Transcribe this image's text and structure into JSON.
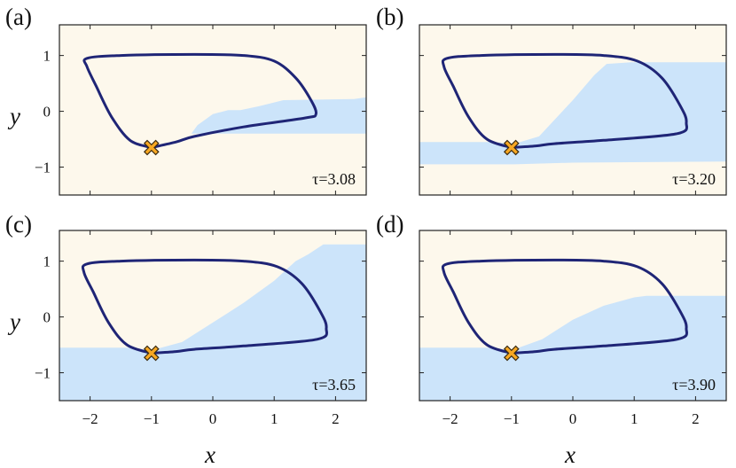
{
  "chart_data": [
    {
      "type": "phase-portrait",
      "panel_label": "(a)",
      "annotation": "τ=3.08",
      "xlabel": "",
      "ylabel": "y",
      "xlim": [
        -2.5,
        2.5
      ],
      "ylim": [
        -1.5,
        1.55
      ],
      "xticks": [],
      "yticks": [
        "1",
        "0",
        "−1"
      ],
      "basin_boundary_upper": [
        [
          -0.35,
          -0.4
        ],
        [
          -0.25,
          -0.25
        ],
        [
          0.0,
          -0.05
        ],
        [
          0.25,
          0.02
        ],
        [
          0.45,
          0.02
        ],
        [
          0.75,
          0.09
        ],
        [
          1.15,
          0.2
        ],
        [
          2.3,
          0.22
        ],
        [
          2.5,
          0.25
        ]
      ],
      "basin_boundary_lower": [
        [
          -0.35,
          -0.4
        ],
        [
          2.5,
          -0.4
        ]
      ],
      "limit_cycle": [
        [
          -1.0,
          -0.65
        ],
        [
          -1.35,
          -0.52
        ],
        [
          -1.65,
          -0.1
        ],
        [
          -1.9,
          0.45
        ],
        [
          -2.05,
          0.8
        ],
        [
          -2.05,
          0.95
        ],
        [
          -1.5,
          1.0
        ],
        [
          -0.3,
          1.02
        ],
        [
          0.5,
          1.0
        ],
        [
          1.0,
          0.9
        ],
        [
          1.35,
          0.6
        ],
        [
          1.6,
          0.2
        ],
        [
          1.68,
          -0.05
        ],
        [
          1.5,
          -0.12
        ],
        [
          0.5,
          -0.28
        ],
        [
          -0.3,
          -0.45
        ],
        [
          -0.6,
          -0.55
        ],
        [
          -1.0,
          -0.65
        ]
      ],
      "initial_point": [
        -1.0,
        -0.65
      ],
      "background_color": "#fdf8ec",
      "basin_color": "#cce4fa",
      "cycle_color": "#1f2576",
      "marker_color": "#f7a823"
    },
    {
      "type": "phase-portrait",
      "panel_label": "(b)",
      "annotation": "τ=3.20",
      "xlabel": "",
      "ylabel": "",
      "xlim": [
        -2.5,
        2.5
      ],
      "ylim": [
        -1.5,
        1.55
      ],
      "xticks": [],
      "yticks": [],
      "basin_boundary_upper": [
        [
          -2.5,
          -0.55
        ],
        [
          -1.3,
          -0.55
        ],
        [
          -0.95,
          -0.58
        ],
        [
          -0.55,
          -0.45
        ],
        [
          0.0,
          0.2
        ],
        [
          0.35,
          0.65
        ],
        [
          0.55,
          0.85
        ],
        [
          0.95,
          0.88
        ],
        [
          2.5,
          0.88
        ]
      ],
      "basin_boundary_lower": [
        [
          -2.5,
          -0.95
        ],
        [
          -0.95,
          -0.95
        ],
        [
          0.0,
          -0.92
        ],
        [
          2.5,
          -0.9
        ]
      ],
      "limit_cycle": [
        [
          -1.0,
          -0.65
        ],
        [
          -1.4,
          -0.5
        ],
        [
          -1.7,
          -0.1
        ],
        [
          -1.95,
          0.45
        ],
        [
          -2.1,
          0.8
        ],
        [
          -2.05,
          0.95
        ],
        [
          -1.5,
          1.0
        ],
        [
          -0.3,
          1.02
        ],
        [
          0.5,
          1.0
        ],
        [
          1.05,
          0.9
        ],
        [
          1.45,
          0.6
        ],
        [
          1.75,
          0.1
        ],
        [
          1.85,
          -0.2
        ],
        [
          1.7,
          -0.4
        ],
        [
          0.5,
          -0.52
        ],
        [
          -0.3,
          -0.58
        ],
        [
          -0.6,
          -0.62
        ],
        [
          -1.0,
          -0.65
        ]
      ],
      "initial_point": [
        -1.0,
        -0.65
      ],
      "background_color": "#fdf8ec",
      "basin_color": "#cce4fa",
      "cycle_color": "#1f2576",
      "marker_color": "#f7a823"
    },
    {
      "type": "phase-portrait",
      "panel_label": "(c)",
      "annotation": "τ=3.65",
      "xlabel": "x",
      "ylabel": "y",
      "xlim": [
        -2.5,
        2.5
      ],
      "ylim": [
        -1.5,
        1.55
      ],
      "xticks": [
        "−2",
        "−1",
        "0",
        "1",
        "2"
      ],
      "yticks": [
        "1",
        "0",
        "−1"
      ],
      "basin_boundary_upper": [
        [
          -2.5,
          -0.55
        ],
        [
          -1.3,
          -0.55
        ],
        [
          -1.0,
          -0.6
        ],
        [
          -0.5,
          -0.45
        ],
        [
          0.0,
          -0.1
        ],
        [
          0.5,
          0.25
        ],
        [
          1.0,
          0.65
        ],
        [
          1.35,
          1.0
        ],
        [
          1.55,
          1.12
        ],
        [
          1.8,
          1.3
        ],
        [
          2.5,
          1.3
        ]
      ],
      "basin_boundary_lower": [
        [
          -2.5,
          -1.5
        ],
        [
          2.5,
          -1.5
        ]
      ],
      "limit_cycle": [
        [
          -1.0,
          -0.65
        ],
        [
          -1.4,
          -0.5
        ],
        [
          -1.7,
          -0.1
        ],
        [
          -1.95,
          0.45
        ],
        [
          -2.1,
          0.8
        ],
        [
          -2.05,
          0.95
        ],
        [
          -1.5,
          1.0
        ],
        [
          -0.3,
          1.02
        ],
        [
          0.5,
          1.0
        ],
        [
          1.05,
          0.9
        ],
        [
          1.45,
          0.6
        ],
        [
          1.75,
          0.1
        ],
        [
          1.85,
          -0.2
        ],
        [
          1.7,
          -0.4
        ],
        [
          0.5,
          -0.52
        ],
        [
          -0.3,
          -0.58
        ],
        [
          -0.6,
          -0.62
        ],
        [
          -1.0,
          -0.65
        ]
      ],
      "initial_point": [
        -1.0,
        -0.65
      ],
      "background_color": "#fdf8ec",
      "basin_color": "#cce4fa",
      "cycle_color": "#1f2576",
      "marker_color": "#f7a823"
    },
    {
      "type": "phase-portrait",
      "panel_label": "(d)",
      "annotation": "τ=3.90",
      "xlabel": "x",
      "ylabel": "",
      "xlim": [
        -2.5,
        2.5
      ],
      "ylim": [
        -1.5,
        1.55
      ],
      "xticks": [
        "−2",
        "−1",
        "0",
        "1",
        "2"
      ],
      "yticks": [],
      "basin_boundary_upper": [
        [
          -2.5,
          -0.55
        ],
        [
          -1.3,
          -0.55
        ],
        [
          -1.0,
          -0.6
        ],
        [
          -0.5,
          -0.4
        ],
        [
          0.0,
          -0.05
        ],
        [
          0.5,
          0.2
        ],
        [
          1.0,
          0.35
        ],
        [
          1.2,
          0.38
        ],
        [
          2.5,
          0.38
        ]
      ],
      "basin_boundary_lower": [
        [
          -2.5,
          -1.5
        ],
        [
          2.5,
          -1.5
        ]
      ],
      "limit_cycle": [
        [
          -1.0,
          -0.65
        ],
        [
          -1.4,
          -0.5
        ],
        [
          -1.7,
          -0.1
        ],
        [
          -1.95,
          0.45
        ],
        [
          -2.1,
          0.8
        ],
        [
          -2.05,
          0.95
        ],
        [
          -1.5,
          1.0
        ],
        [
          -0.3,
          1.02
        ],
        [
          0.5,
          1.0
        ],
        [
          1.05,
          0.9
        ],
        [
          1.45,
          0.6
        ],
        [
          1.75,
          0.1
        ],
        [
          1.85,
          -0.2
        ],
        [
          1.7,
          -0.4
        ],
        [
          0.5,
          -0.52
        ],
        [
          -0.3,
          -0.58
        ],
        [
          -0.6,
          -0.62
        ],
        [
          -1.0,
          -0.65
        ]
      ],
      "initial_point": [
        -1.0,
        -0.65
      ],
      "background_color": "#fdf8ec",
      "basin_color": "#cce4fa",
      "cycle_color": "#1f2576",
      "marker_color": "#f7a823"
    }
  ]
}
